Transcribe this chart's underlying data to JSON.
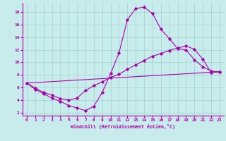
{
  "xlabel": "Windchill (Refroidissement éolien,°C)",
  "background_color": "#c8ecec",
  "grid_color": "#aad4d4",
  "line_color": "#aa00aa",
  "xlim": [
    -0.5,
    23.5
  ],
  "ylim": [
    1.5,
    19.5
  ],
  "yticks": [
    2,
    4,
    6,
    8,
    10,
    12,
    14,
    16,
    18
  ],
  "xticks": [
    0,
    1,
    2,
    3,
    4,
    5,
    6,
    7,
    8,
    9,
    10,
    11,
    12,
    13,
    14,
    15,
    16,
    17,
    18,
    19,
    20,
    21,
    22,
    23
  ],
  "line1_x": [
    0,
    1,
    2,
    3,
    4,
    5,
    6,
    7,
    8,
    9,
    10,
    11,
    12,
    13,
    14,
    15,
    16,
    17,
    18,
    19,
    20,
    21,
    22,
    23
  ],
  "line1_y": [
    6.7,
    5.7,
    5.0,
    4.3,
    3.8,
    3.1,
    2.7,
    2.3,
    3.0,
    5.2,
    8.2,
    11.5,
    16.8,
    18.6,
    18.8,
    17.8,
    15.3,
    13.8,
    12.2,
    12.0,
    10.4,
    9.3,
    8.6,
    8.5
  ],
  "line2_x": [
    0,
    1,
    2,
    3,
    4,
    5,
    6,
    7,
    8,
    9,
    10,
    11,
    12,
    13,
    14,
    15,
    16,
    17,
    18,
    19,
    20,
    21,
    22,
    23
  ],
  "line2_y": [
    6.7,
    5.9,
    5.2,
    4.8,
    4.2,
    4.0,
    4.3,
    5.5,
    6.3,
    6.9,
    7.6,
    8.1,
    8.9,
    9.6,
    10.3,
    11.0,
    11.4,
    11.9,
    12.3,
    12.6,
    12.1,
    10.5,
    8.4,
    8.5
  ],
  "line3_x": [
    0,
    23
  ],
  "line3_y": [
    6.7,
    8.5
  ]
}
